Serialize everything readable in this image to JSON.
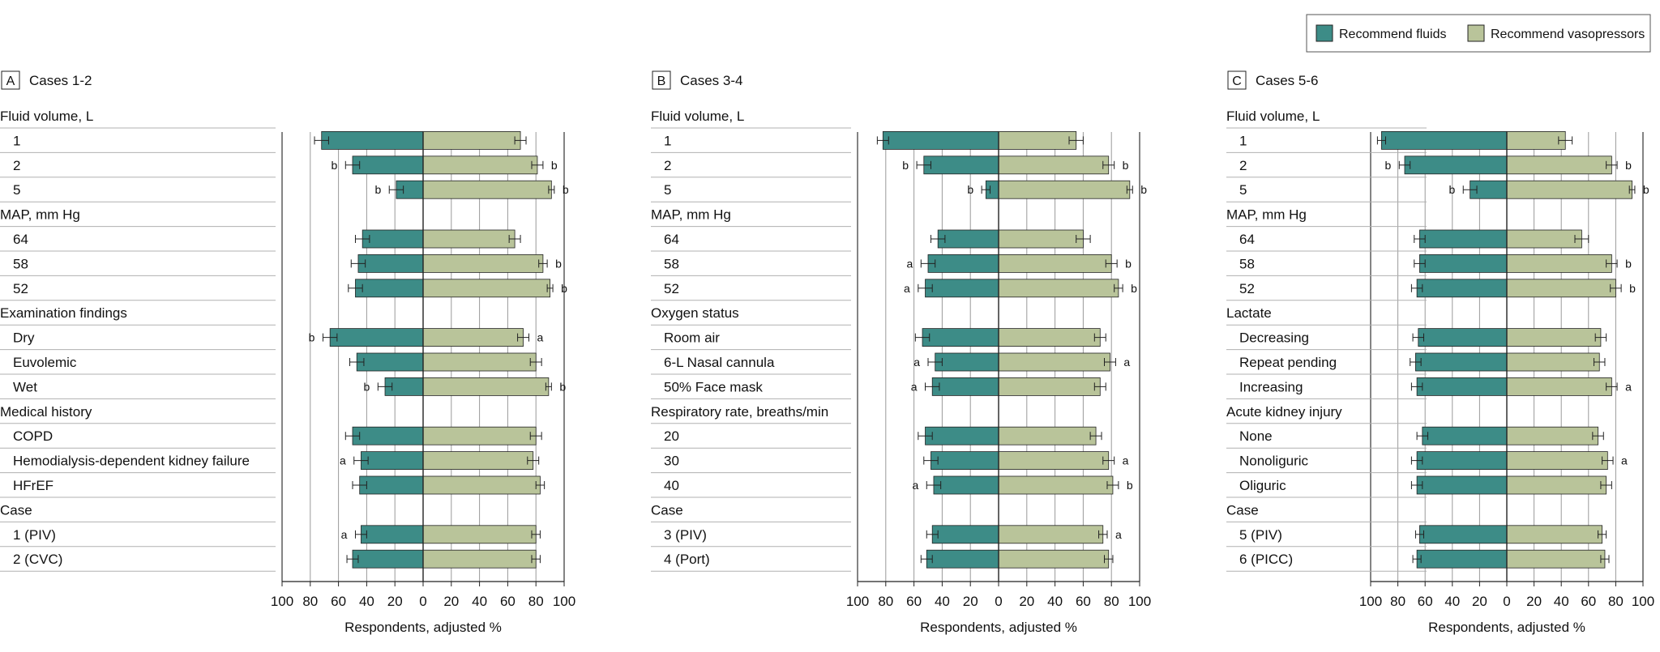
{
  "legend": {
    "fluids_label": "Recommend fluids",
    "vasopressors_label": "Recommend vasopressors",
    "fluids_color": "#3d8c87",
    "vasopressors_color": "#b9c49a"
  },
  "chart_data": [
    {
      "type": "bar",
      "panel_letter": "A",
      "title": "Cases 1-2",
      "xlabel": "Respondents, adjusted %",
      "xlim": [
        -100,
        100
      ],
      "ticks": [
        100,
        80,
        60,
        40,
        20,
        0,
        20,
        40,
        60,
        80,
        100
      ],
      "rows": [
        {
          "kind": "group",
          "label": "Fluid volume, L"
        },
        {
          "kind": "item",
          "label": "1",
          "fluids": 72,
          "fluids_err": 5,
          "vaso": 69,
          "vaso_err": 4,
          "fluids_sig": "",
          "vaso_sig": ""
        },
        {
          "kind": "item",
          "label": "2",
          "fluids": 50,
          "fluids_err": 5,
          "vaso": 81,
          "vaso_err": 4,
          "fluids_sig": "b",
          "vaso_sig": "b"
        },
        {
          "kind": "item",
          "label": "5",
          "fluids": 19,
          "fluids_err": 5,
          "vaso": 91,
          "vaso_err": 2,
          "fluids_sig": "b",
          "vaso_sig": "b"
        },
        {
          "kind": "group",
          "label": "MAP, mm Hg"
        },
        {
          "kind": "item",
          "label": "64",
          "fluids": 43,
          "fluids_err": 5,
          "vaso": 65,
          "vaso_err": 4,
          "fluids_sig": "",
          "vaso_sig": ""
        },
        {
          "kind": "item",
          "label": "58",
          "fluids": 46,
          "fluids_err": 5,
          "vaso": 85,
          "vaso_err": 3,
          "fluids_sig": "",
          "vaso_sig": "b"
        },
        {
          "kind": "item",
          "label": "52",
          "fluids": 48,
          "fluids_err": 5,
          "vaso": 90,
          "vaso_err": 2,
          "fluids_sig": "",
          "vaso_sig": "b"
        },
        {
          "kind": "group",
          "label": "Examination findings"
        },
        {
          "kind": "item",
          "label": "Dry",
          "fluids": 66,
          "fluids_err": 5,
          "vaso": 71,
          "vaso_err": 4,
          "fluids_sig": "b",
          "vaso_sig": "a"
        },
        {
          "kind": "item",
          "label": "Euvolemic",
          "fluids": 47,
          "fluids_err": 5,
          "vaso": 80,
          "vaso_err": 4,
          "fluids_sig": "",
          "vaso_sig": ""
        },
        {
          "kind": "item",
          "label": "Wet",
          "fluids": 27,
          "fluids_err": 5,
          "vaso": 89,
          "vaso_err": 2,
          "fluids_sig": "b",
          "vaso_sig": "b"
        },
        {
          "kind": "group",
          "label": "Medical history"
        },
        {
          "kind": "item",
          "label": "COPD",
          "fluids": 50,
          "fluids_err": 5,
          "vaso": 80,
          "vaso_err": 4,
          "fluids_sig": "",
          "vaso_sig": ""
        },
        {
          "kind": "item",
          "label": "Hemodialysis-dependent kidney failure",
          "fluids": 44,
          "fluids_err": 5,
          "vaso": 78,
          "vaso_err": 4,
          "fluids_sig": "a",
          "vaso_sig": ""
        },
        {
          "kind": "item",
          "label": "HFrEF",
          "fluids": 45,
          "fluids_err": 5,
          "vaso": 83,
          "vaso_err": 3,
          "fluids_sig": "",
          "vaso_sig": ""
        },
        {
          "kind": "group",
          "label": "Case"
        },
        {
          "kind": "item",
          "label": "1 (PIV)",
          "fluids": 44,
          "fluids_err": 4,
          "vaso": 80,
          "vaso_err": 3,
          "fluids_sig": "a",
          "vaso_sig": ""
        },
        {
          "kind": "item",
          "label": "2 (CVC)",
          "fluids": 50,
          "fluids_err": 4,
          "vaso": 80,
          "vaso_err": 3,
          "fluids_sig": "",
          "vaso_sig": ""
        }
      ]
    },
    {
      "type": "bar",
      "panel_letter": "B",
      "title": "Cases 3-4",
      "xlabel": "Respondents, adjusted %",
      "xlim": [
        -100,
        100
      ],
      "ticks": [
        100,
        80,
        60,
        40,
        20,
        0,
        20,
        40,
        60,
        80,
        100
      ],
      "rows": [
        {
          "kind": "group",
          "label": "Fluid volume, L"
        },
        {
          "kind": "item",
          "label": "1",
          "fluids": 82,
          "fluids_err": 4,
          "vaso": 55,
          "vaso_err": 5,
          "fluids_sig": "",
          "vaso_sig": ""
        },
        {
          "kind": "item",
          "label": "2",
          "fluids": 53,
          "fluids_err": 5,
          "vaso": 78,
          "vaso_err": 4,
          "fluids_sig": "b",
          "vaso_sig": "b"
        },
        {
          "kind": "item",
          "label": "5",
          "fluids": 9,
          "fluids_err": 3,
          "vaso": 93,
          "vaso_err": 2,
          "fluids_sig": "b",
          "vaso_sig": "b"
        },
        {
          "kind": "group",
          "label": "MAP, mm Hg"
        },
        {
          "kind": "item",
          "label": "64",
          "fluids": 43,
          "fluids_err": 5,
          "vaso": 60,
          "vaso_err": 5,
          "fluids_sig": "",
          "vaso_sig": ""
        },
        {
          "kind": "item",
          "label": "58",
          "fluids": 50,
          "fluids_err": 5,
          "vaso": 80,
          "vaso_err": 4,
          "fluids_sig": "a",
          "vaso_sig": "b"
        },
        {
          "kind": "item",
          "label": "52",
          "fluids": 52,
          "fluids_err": 5,
          "vaso": 85,
          "vaso_err": 3,
          "fluids_sig": "a",
          "vaso_sig": "b"
        },
        {
          "kind": "group",
          "label": "Oxygen status"
        },
        {
          "kind": "item",
          "label": "Room air",
          "fluids": 54,
          "fluids_err": 5,
          "vaso": 72,
          "vaso_err": 4,
          "fluids_sig": "",
          "vaso_sig": ""
        },
        {
          "kind": "item",
          "label": "6-L Nasal cannula",
          "fluids": 45,
          "fluids_err": 5,
          "vaso": 79,
          "vaso_err": 4,
          "fluids_sig": "a",
          "vaso_sig": "a"
        },
        {
          "kind": "item",
          "label": "50% Face mask",
          "fluids": 47,
          "fluids_err": 5,
          "vaso": 72,
          "vaso_err": 4,
          "fluids_sig": "a",
          "vaso_sig": ""
        },
        {
          "kind": "group",
          "label": "Respiratory rate, breaths/min"
        },
        {
          "kind": "item",
          "label": "20",
          "fluids": 52,
          "fluids_err": 5,
          "vaso": 69,
          "vaso_err": 4,
          "fluids_sig": "",
          "vaso_sig": ""
        },
        {
          "kind": "item",
          "label": "30",
          "fluids": 48,
          "fluids_err": 5,
          "vaso": 78,
          "vaso_err": 4,
          "fluids_sig": "",
          "vaso_sig": "a"
        },
        {
          "kind": "item",
          "label": "40",
          "fluids": 46,
          "fluids_err": 5,
          "vaso": 81,
          "vaso_err": 4,
          "fluids_sig": "a",
          "vaso_sig": "b"
        },
        {
          "kind": "group",
          "label": "Case"
        },
        {
          "kind": "item",
          "label": "3 (PIV)",
          "fluids": 47,
          "fluids_err": 4,
          "vaso": 74,
          "vaso_err": 3,
          "fluids_sig": "",
          "vaso_sig": "a"
        },
        {
          "kind": "item",
          "label": "4 (Port)",
          "fluids": 51,
          "fluids_err": 4,
          "vaso": 78,
          "vaso_err": 3,
          "fluids_sig": "",
          "vaso_sig": ""
        }
      ]
    },
    {
      "type": "bar",
      "panel_letter": "C",
      "title": "Cases 5-6",
      "xlabel": "Respondents, adjusted %",
      "xlim": [
        -100,
        100
      ],
      "ticks": [
        100,
        80,
        60,
        40,
        20,
        0,
        20,
        40,
        60,
        80,
        100
      ],
      "rows": [
        {
          "kind": "group",
          "label": "Fluid volume, L"
        },
        {
          "kind": "item",
          "label": "1",
          "fluids": 92,
          "fluids_err": 3,
          "vaso": 43,
          "vaso_err": 5,
          "fluids_sig": "",
          "vaso_sig": ""
        },
        {
          "kind": "item",
          "label": "2",
          "fluids": 75,
          "fluids_err": 4,
          "vaso": 77,
          "vaso_err": 4,
          "fluids_sig": "b",
          "vaso_sig": "b"
        },
        {
          "kind": "item",
          "label": "5",
          "fluids": 27,
          "fluids_err": 5,
          "vaso": 92,
          "vaso_err": 2,
          "fluids_sig": "b",
          "vaso_sig": "b"
        },
        {
          "kind": "group",
          "label": "MAP, mm Hg"
        },
        {
          "kind": "item",
          "label": "64",
          "fluids": 64,
          "fluids_err": 4,
          "vaso": 55,
          "vaso_err": 5,
          "fluids_sig": "",
          "vaso_sig": ""
        },
        {
          "kind": "item",
          "label": "58",
          "fluids": 64,
          "fluids_err": 4,
          "vaso": 77,
          "vaso_err": 4,
          "fluids_sig": "",
          "vaso_sig": "b"
        },
        {
          "kind": "item",
          "label": "52",
          "fluids": 66,
          "fluids_err": 4,
          "vaso": 80,
          "vaso_err": 4,
          "fluids_sig": "",
          "vaso_sig": "b"
        },
        {
          "kind": "group",
          "label": "Lactate"
        },
        {
          "kind": "item",
          "label": "Decreasing",
          "fluids": 65,
          "fluids_err": 4,
          "vaso": 69,
          "vaso_err": 4,
          "fluids_sig": "",
          "vaso_sig": ""
        },
        {
          "kind": "item",
          "label": "Repeat pending",
          "fluids": 67,
          "fluids_err": 4,
          "vaso": 68,
          "vaso_err": 4,
          "fluids_sig": "",
          "vaso_sig": ""
        },
        {
          "kind": "item",
          "label": "Increasing",
          "fluids": 66,
          "fluids_err": 4,
          "vaso": 77,
          "vaso_err": 4,
          "fluids_sig": "",
          "vaso_sig": "a"
        },
        {
          "kind": "group",
          "label": "Acute kidney injury"
        },
        {
          "kind": "item",
          "label": "None",
          "fluids": 62,
          "fluids_err": 4,
          "vaso": 67,
          "vaso_err": 4,
          "fluids_sig": "",
          "vaso_sig": ""
        },
        {
          "kind": "item",
          "label": "Nonoliguric",
          "fluids": 66,
          "fluids_err": 4,
          "vaso": 74,
          "vaso_err": 4,
          "fluids_sig": "",
          "vaso_sig": "a"
        },
        {
          "kind": "item",
          "label": "Oliguric",
          "fluids": 66,
          "fluids_err": 4,
          "vaso": 73,
          "vaso_err": 4,
          "fluids_sig": "",
          "vaso_sig": ""
        },
        {
          "kind": "group",
          "label": "Case"
        },
        {
          "kind": "item",
          "label": "5 (PIV)",
          "fluids": 64,
          "fluids_err": 3,
          "vaso": 70,
          "vaso_err": 3,
          "fluids_sig": "",
          "vaso_sig": ""
        },
        {
          "kind": "item",
          "label": "6 (PICC)",
          "fluids": 66,
          "fluids_err": 3,
          "vaso": 72,
          "vaso_err": 3,
          "fluids_sig": "",
          "vaso_sig": ""
        }
      ]
    }
  ]
}
